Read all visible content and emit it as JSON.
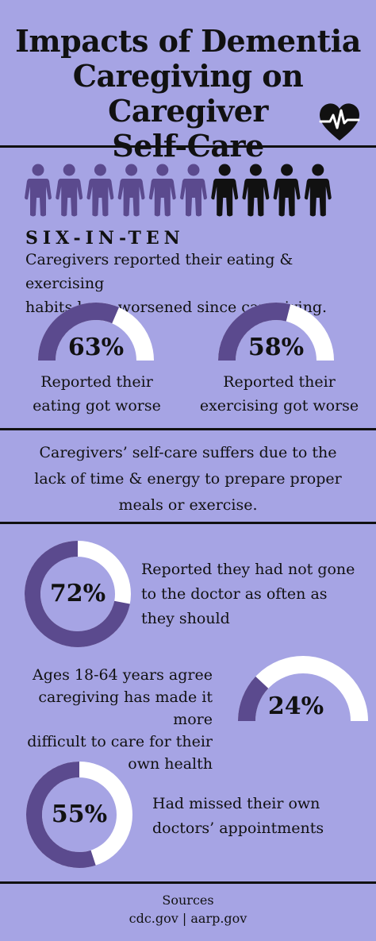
{
  "title_lines": [
    "Impacts of Dementia",
    "Caregiving on Caregiver",
    "Self-Care"
  ],
  "colors": {
    "background": "#a6a4e4",
    "accent": "#5b4a8e",
    "ring_track": "#ffffff",
    "divider": "#111111"
  },
  "icons": {
    "heart": "heartbeat-icon",
    "person": "person-icon"
  },
  "people": {
    "total": 10,
    "highlighted": 6
  },
  "six_in_ten": {
    "label": "SIX-IN-TEN",
    "description_lines": [
      "Caregivers reported their eating & exercising",
      "habits have worsened since caregiving."
    ]
  },
  "stats": [
    {
      "value": 63,
      "value_label": "63%",
      "caption_lines": [
        "Reported their",
        "eating got worse"
      ]
    },
    {
      "value": 58,
      "value_label": "58%",
      "caption_lines": [
        "Reported their",
        "exercising got worse"
      ]
    }
  ],
  "middle_note_lines": [
    "Caregivers’ self-care suffers due to the",
    "lack of time & energy to prepare proper",
    "meals or exercise."
  ],
  "stats2": [
    {
      "value": 72,
      "value_label": "72%",
      "caption_lines": [
        "Reported they had not gone",
        "to the doctor as often as",
        "they should"
      ]
    },
    {
      "value": 24,
      "value_label": "24%",
      "caption_lines": [
        "Ages 18-64 years agree",
        "caregiving has made it more",
        "difficult to care for their",
        "own health"
      ]
    },
    {
      "value": 55,
      "value_label": "55%",
      "caption_lines": [
        "Had missed their own",
        "doctors’ appointments"
      ]
    }
  ],
  "sources": {
    "heading": "Sources",
    "text": "cdc.gov | aarp.gov"
  }
}
